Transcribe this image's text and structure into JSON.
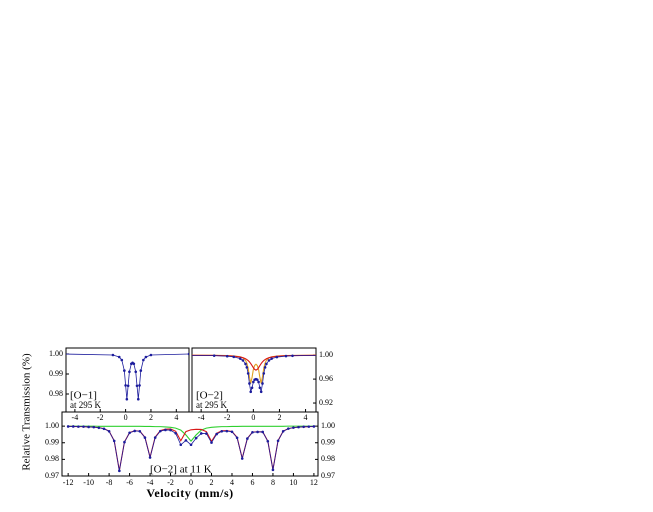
{
  "chart_data": [
    {
      "type": "line",
      "ylabel": "Relative Transmission (%)",
      "label_lines": [
        "[O−1]",
        "at 295 K"
      ],
      "xlim": [
        -4.7,
        5
      ],
      "xticks": [
        -4,
        -2,
        0,
        2,
        4
      ],
      "ylim": [
        0.971,
        1.003
      ],
      "yticks": [
        {
          "value": 1,
          "label": "1.00"
        },
        0.99,
        0.98
      ],
      "yaxis_side": "left",
      "x": [
        -5,
        -1,
        -0.5,
        -0.3,
        -0.1,
        0,
        0.1,
        0.2,
        0.3,
        0.45,
        0.55,
        0.65,
        0.8,
        0.9,
        1.0,
        1.1,
        1.2,
        1.4,
        1.6,
        2.0,
        5
      ],
      "series": [
        {
          "color": "#1c1c9c",
          "markers": true,
          "values": [
            1,
            0.9995,
            0.9985,
            0.997,
            0.9917,
            0.9843,
            0.9774,
            0.9841,
            0.9911,
            0.9951,
            0.9956,
            0.9951,
            0.9911,
            0.9841,
            0.9774,
            0.9843,
            0.9917,
            0.997,
            0.9985,
            0.9995,
            1
          ]
        }
      ]
    },
    {
      "type": "line",
      "label_lines": [
        "[O−2]",
        "at 295 K"
      ],
      "xlim": [
        -4.7,
        4.8
      ],
      "xticks": [
        -4,
        -2,
        0,
        2,
        4
      ],
      "ylim": [
        0.905,
        1.012
      ],
      "yticks": [
        {
          "value": 1,
          "label": "1.00"
        },
        0.96,
        0.92
      ],
      "yaxis_side": "right",
      "x": [
        -5,
        -3,
        -2,
        -1.5,
        -1,
        -0.8,
        -0.6,
        -0.5,
        -0.4,
        -0.3,
        -0.2,
        -0.1,
        0,
        0.1,
        0.2,
        0.3,
        0.4,
        0.5,
        0.6,
        0.7,
        0.8,
        0.9,
        1.0,
        1.2,
        1.4,
        1.8,
        2.5,
        3,
        5
      ],
      "series": [
        {
          "color": "#e0a020",
          "markers": false,
          "values": [
            0.9999,
            0.9997,
            0.9993,
            0.9988,
            0.9973,
            0.9955,
            0.9914,
            0.9869,
            0.9785,
            0.9639,
            0.9528,
            0.9628,
            0.9761,
            0.9829,
            0.9849,
            0.9829,
            0.9761,
            0.9628,
            0.9528,
            0.9639,
            0.9785,
            0.9869,
            0.9914,
            0.9955,
            0.9973,
            0.9986,
            0.9994,
            0.9996,
            0.9999
          ]
        },
        {
          "color": "#d81818",
          "markers": false,
          "values": [
            0.9998,
            0.9995,
            0.999,
            0.9984,
            0.9969,
            0.9958,
            0.994,
            0.9927,
            0.991,
            0.9888,
            0.986,
            0.9827,
            0.9791,
            0.9762,
            0.975,
            0.9762,
            0.9791,
            0.9827,
            0.986,
            0.9888,
            0.991,
            0.9927,
            0.994,
            0.9958,
            0.9969,
            0.9982,
            0.9991,
            0.9994,
            0.9998
          ]
        },
        {
          "color": "#1c1c9c",
          "markers": true,
          "values": [
            0.9997,
            0.9992,
            0.9983,
            0.9972,
            0.9942,
            0.9913,
            0.9854,
            0.9796,
            0.9695,
            0.9527,
            0.9388,
            0.9455,
            0.9552,
            0.9591,
            0.9599,
            0.9591,
            0.9552,
            0.9455,
            0.9388,
            0.9527,
            0.9695,
            0.9796,
            0.9854,
            0.9913,
            0.9942,
            0.9968,
            0.9985,
            0.999,
            0.9997
          ]
        }
      ]
    },
    {
      "type": "line",
      "xlabel": "Velocity (mm/s)",
      "label_lines": [
        "[O−2] at 11 K"
      ],
      "xlim": [
        -12.6,
        12.4
      ],
      "xticks": [
        -12,
        -10,
        -8,
        -6,
        -4,
        -2,
        0,
        2,
        4,
        6,
        8,
        10,
        12
      ],
      "ylim": [
        0.97,
        1.0085
      ],
      "yticks": [
        {
          "value": 1,
          "label": "1.00"
        },
        0.99,
        0.98,
        0.97
      ],
      "yaxis_side": "both",
      "x": [
        -12,
        -11.5,
        -11,
        -10.5,
        -10,
        -9.5,
        -9,
        -8.5,
        -8,
        -7.5,
        -7,
        -6.5,
        -6,
        -5.5,
        -5,
        -4.5,
        -4,
        -3.5,
        -3,
        -2.5,
        -2,
        -1.5,
        -1,
        -0.5,
        0,
        0.5,
        1,
        1.5,
        2,
        2.5,
        3,
        3.5,
        4,
        4.5,
        5,
        5.5,
        6,
        6.5,
        7,
        7.5,
        8,
        8.5,
        9,
        9.5,
        10,
        10.5,
        11,
        11.5,
        12
      ],
      "series": [
        {
          "color": "#30d030",
          "markers": false,
          "values": [
            1,
            1,
            1,
            1,
            1,
            1,
            0.9999,
            0.9999,
            0.9999,
            0.9999,
            0.9999,
            0.9999,
            0.9999,
            0.9999,
            0.9999,
            0.9998,
            0.9998,
            0.9997,
            0.9997,
            0.9995,
            0.9993,
            0.9988,
            0.9976,
            0.9947,
            0.991,
            0.9947,
            0.9976,
            0.9988,
            0.9993,
            0.9995,
            0.9997,
            0.9997,
            0.9998,
            0.9998,
            0.9999,
            0.9999,
            0.9999,
            0.9999,
            0.9999,
            0.9999,
            0.9999,
            0.9999,
            0.9999,
            1,
            1,
            1,
            1,
            1,
            1
          ]
        },
        {
          "color": "#d81818",
          "markers": false,
          "values": [
            0.9998,
            0.9998,
            0.9997,
            0.9997,
            0.9995,
            0.9994,
            0.9991,
            0.9985,
            0.997,
            0.9912,
            0.9732,
            0.9905,
            0.9961,
            0.9972,
            0.997,
            0.9933,
            0.9813,
            0.9934,
            0.9973,
            0.9982,
            0.9983,
            0.9969,
            0.9912,
            0.9967,
            0.9978,
            0.9981,
            0.998,
            0.9967,
            0.9908,
            0.9957,
            0.9972,
            0.9973,
            0.9968,
            0.9932,
            0.9806,
            0.9926,
            0.9964,
            0.9966,
            0.9966,
            0.991,
            0.9738,
            0.9913,
            0.997,
            0.9985,
            0.9991,
            0.9994,
            0.9996,
            0.9997,
            0.9998
          ]
        },
        {
          "color": "#1c1c9c",
          "markers": true,
          "values": [
            0.9998,
            0.9998,
            0.9997,
            0.9997,
            0.9995,
            0.9994,
            0.999,
            0.9984,
            0.9969,
            0.9911,
            0.9731,
            0.9904,
            0.996,
            0.9971,
            0.9969,
            0.9931,
            0.9811,
            0.9931,
            0.997,
            0.9977,
            0.9976,
            0.9957,
            0.9888,
            0.9914,
            0.9888,
            0.9928,
            0.9956,
            0.9955,
            0.9901,
            0.9952,
            0.9969,
            0.997,
            0.9966,
            0.993,
            0.9805,
            0.9925,
            0.9963,
            0.9965,
            0.9965,
            0.9909,
            0.9737,
            0.9912,
            0.9969,
            0.9985,
            0.9991,
            0.9994,
            0.9996,
            0.9997,
            0.9998
          ]
        }
      ]
    }
  ]
}
